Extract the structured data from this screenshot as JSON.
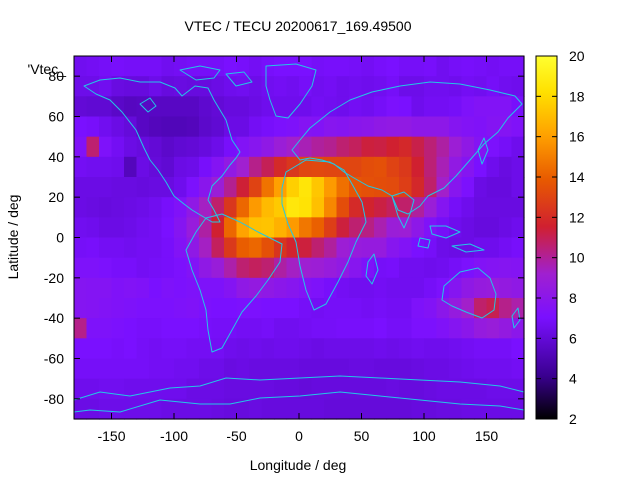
{
  "chart_data": {
    "type": "heatmap",
    "title": "VTEC / TECU 20200617_169.49500",
    "xlabel": "Longitude / deg",
    "ylabel": "Latitude / deg",
    "legend_label": "'Vtec_",
    "xlim": [
      -180,
      180
    ],
    "ylim": [
      -90,
      90
    ],
    "xticks": [
      -150,
      -100,
      -50,
      0,
      50,
      100,
      150
    ],
    "yticks": [
      -80,
      -60,
      -40,
      -20,
      0,
      20,
      40,
      60,
      80
    ],
    "colorbar": {
      "range": [
        2,
        20
      ],
      "ticks": [
        2,
        4,
        6,
        8,
        10,
        12,
        14,
        16,
        18,
        20
      ],
      "palette": [
        "#000000",
        "#3a0090",
        "#7a10ff",
        "#a020d0",
        "#d02030",
        "#e85a00",
        "#ffa000",
        "#ffe000",
        "#ffff30"
      ]
    },
    "grid": {
      "cols": 36,
      "rows": 18,
      "lon_step": 10,
      "lat_step": 10,
      "note": "rows run from latitude 90 (top) to -90 (bottom)",
      "values": [
        [
          6.6,
          6.7,
          6.8,
          6.9,
          6.8,
          6.8,
          6.8,
          6.6,
          6.7,
          6.8,
          6.8,
          6.8,
          7.0,
          6.9,
          6.7,
          6.9,
          7.0,
          7.0,
          7.0,
          6.8,
          6.9,
          6.9,
          6.8,
          6.7,
          6.9,
          7.0,
          6.8,
          6.8,
          6.9,
          6.6,
          6.8,
          6.9,
          6.8,
          6.7,
          6.8,
          6.8
        ],
        [
          6.4,
          6.4,
          6.6,
          6.2,
          6.1,
          6.1,
          6.4,
          6.1,
          6.2,
          6.1,
          6.1,
          6.3,
          6.5,
          6.6,
          6.4,
          6.6,
          6.7,
          6.6,
          6.8,
          6.6,
          6.7,
          6.5,
          6.6,
          6.5,
          6.6,
          6.8,
          6.4,
          6.4,
          6.6,
          6.6,
          6.5,
          6.7,
          6.6,
          6.8,
          6.6,
          6.5
        ],
        [
          5.9,
          5.8,
          5.8,
          5.5,
          5.3,
          5.4,
          5.4,
          5.4,
          5.4,
          5.4,
          5.7,
          5.9,
          6.1,
          6.1,
          6.3,
          6.5,
          6.5,
          6.5,
          6.5,
          6.7,
          6.6,
          6.5,
          6.7,
          6.6,
          6.8,
          7.1,
          7.0,
          6.5,
          6.7,
          6.7,
          6.8,
          7.2,
          7.4,
          7.4,
          7.4,
          6.9
        ],
        [
          7.0,
          6.9,
          6.6,
          6.3,
          6.0,
          5.4,
          5.2,
          5.1,
          5.1,
          5.2,
          5.6,
          5.8,
          6.3,
          6.3,
          6.7,
          6.9,
          7.1,
          7.2,
          7.5,
          7.4,
          7.7,
          7.6,
          7.8,
          7.9,
          8.1,
          8.2,
          8.2,
          8.0,
          8.0,
          8.0,
          7.6,
          7.4,
          7.3,
          7.5,
          7.5,
          7.3
        ],
        [
          7.3,
          10.5,
          7.2,
          6.7,
          6.3,
          6.1,
          5.9,
          5.6,
          5.8,
          5.9,
          6.1,
          6.4,
          6.9,
          7.4,
          7.7,
          8.1,
          8.7,
          9.1,
          9.4,
          9.8,
          10.0,
          10.5,
          10.8,
          11.3,
          11.2,
          11.5,
          11.8,
          11.1,
          10.4,
          9.7,
          8.8,
          8.1,
          7.5,
          7.1,
          6.8,
          6.5
        ],
        [
          6.7,
          6.6,
          6.6,
          6.5,
          5.2,
          6.3,
          6.0,
          5.8,
          6.3,
          6.4,
          6.9,
          7.5,
          8.2,
          9.0,
          10.1,
          10.9,
          11.9,
          12.4,
          13.0,
          13.1,
          13.0,
          13.0,
          13.0,
          13.3,
          13.4,
          12.9,
          12.5,
          11.5,
          10.4,
          9.4,
          8.2,
          7.6,
          7.0,
          6.5,
          6.2,
          6.4
        ],
        [
          6.3,
          6.3,
          6.3,
          6.2,
          6.2,
          6.1,
          6.2,
          6.2,
          6.5,
          7.1,
          7.8,
          8.7,
          10.0,
          11.4,
          12.9,
          14.6,
          16.0,
          17.6,
          18.5,
          17.3,
          15.8,
          14.5,
          13.6,
          13.4,
          13.3,
          13.2,
          12.7,
          11.8,
          10.6,
          9.1,
          7.7,
          7.1,
          6.3,
          6.1,
          6.1,
          6.4
        ],
        [
          6.3,
          6.2,
          6.1,
          6.2,
          6.3,
          6.4,
          6.6,
          6.9,
          7.3,
          8.1,
          9.2,
          10.6,
          12.4,
          14.2,
          15.8,
          16.9,
          17.4,
          18.6,
          18.4,
          17.1,
          15.2,
          13.3,
          11.9,
          11.6,
          11.2,
          10.8,
          10.6,
          9.8,
          8.7,
          7.6,
          6.8,
          6.5,
          6.2,
          6.2,
          6.2,
          6.2
        ],
        [
          6.6,
          6.5,
          6.3,
          6.3,
          6.4,
          6.6,
          6.7,
          7.0,
          7.6,
          8.5,
          9.7,
          11.5,
          14.2,
          16.1,
          17.1,
          17.2,
          16.6,
          15.8,
          14.7,
          14.0,
          12.7,
          11.3,
          10.5,
          10.2,
          9.5,
          8.7,
          8.8,
          8.0,
          7.3,
          6.8,
          6.5,
          6.3,
          6.1,
          6.1,
          6.3,
          6.5
        ],
        [
          6.8,
          6.9,
          6.7,
          6.7,
          6.6,
          6.7,
          6.7,
          6.9,
          7.4,
          8.1,
          9.2,
          10.8,
          12.5,
          13.9,
          14.2,
          13.4,
          12.3,
          11.6,
          11.3,
          10.5,
          9.8,
          8.8,
          8.5,
          8.4,
          8.4,
          7.7,
          7.4,
          7.0,
          6.8,
          6.4,
          6.3,
          6.3,
          6.5,
          6.5,
          6.7,
          6.9
        ],
        [
          7.2,
          7.2,
          7.1,
          6.9,
          6.9,
          6.7,
          6.8,
          6.9,
          7.1,
          7.4,
          8.1,
          8.6,
          9.6,
          10.5,
          10.8,
          10.5,
          9.7,
          9.2,
          8.9,
          8.8,
          8.5,
          8.2,
          7.7,
          7.2,
          6.8,
          6.9,
          6.6,
          6.6,
          6.5,
          6.6,
          6.8,
          7.1,
          7.4,
          7.5,
          7.6,
          7.5
        ],
        [
          7.6,
          7.5,
          7.5,
          7.3,
          7.4,
          7.3,
          7.0,
          7.2,
          7.1,
          7.2,
          7.2,
          7.2,
          7.5,
          8.1,
          8.3,
          8.1,
          7.9,
          7.7,
          7.4,
          7.2,
          6.9,
          6.7,
          6.6,
          6.6,
          6.7,
          6.6,
          6.6,
          6.6,
          6.8,
          7.1,
          7.6,
          8.1,
          8.4,
          8.5,
          8.3,
          8.1
        ],
        [
          7.6,
          7.5,
          7.4,
          7.3,
          7.2,
          7.1,
          7.1,
          7.1,
          7.2,
          7.3,
          7.1,
          7.0,
          7.0,
          7.1,
          7.1,
          7.0,
          7.0,
          7.0,
          6.8,
          6.7,
          6.8,
          6.8,
          6.8,
          6.7,
          6.8,
          6.7,
          6.7,
          7.2,
          7.4,
          7.9,
          8.4,
          9.1,
          10.6,
          11.0,
          10.1,
          9.6
        ],
        [
          10.1,
          7.2,
          7.2,
          7.1,
          7.0,
          6.9,
          6.9,
          7.0,
          7.0,
          7.0,
          6.9,
          6.8,
          6.8,
          6.7,
          6.7,
          6.8,
          6.6,
          6.6,
          6.7,
          6.8,
          6.8,
          6.9,
          6.9,
          6.9,
          7.0,
          6.8,
          6.8,
          7.1,
          7.1,
          7.3,
          7.6,
          7.9,
          8.4,
          8.6,
          8.3,
          7.9
        ],
        [
          7.0,
          7.0,
          7.0,
          6.9,
          7.0,
          6.8,
          6.7,
          6.8,
          6.8,
          6.7,
          6.7,
          6.7,
          6.5,
          6.4,
          6.5,
          6.4,
          6.5,
          6.5,
          6.4,
          6.3,
          6.4,
          6.4,
          6.4,
          6.4,
          6.5,
          6.4,
          6.5,
          6.6,
          6.5,
          6.5,
          6.6,
          6.7,
          6.8,
          6.8,
          6.8,
          7.0
        ],
        [
          6.8,
          6.8,
          6.8,
          6.8,
          6.8,
          6.8,
          6.7,
          6.7,
          6.6,
          6.6,
          6.4,
          6.4,
          6.2,
          6.3,
          6.2,
          6.2,
          6.2,
          6.2,
          6.1,
          6.1,
          6.1,
          6.1,
          6.2,
          6.2,
          6.1,
          6.1,
          6.1,
          6.2,
          6.3,
          6.3,
          6.4,
          6.5,
          6.6,
          6.6,
          6.6,
          6.7
        ],
        [
          6.5,
          6.5,
          6.6,
          6.6,
          6.5,
          6.5,
          6.5,
          6.5,
          6.5,
          6.3,
          6.3,
          6.3,
          6.2,
          6.2,
          6.2,
          6.2,
          6.1,
          6.1,
          6.0,
          6.1,
          6.1,
          6.1,
          6.1,
          6.1,
          6.1,
          6.2,
          6.1,
          6.1,
          6.2,
          6.3,
          6.3,
          6.3,
          6.3,
          6.4,
          6.4,
          6.4
        ],
        [
          6.3,
          6.3,
          6.4,
          6.4,
          6.4,
          6.4,
          6.4,
          6.3,
          6.3,
          6.3,
          6.3,
          6.2,
          6.1,
          6.1,
          6.2,
          6.1,
          6.1,
          6.1,
          6.1,
          6.1,
          6.0,
          6.0,
          6.0,
          6.0,
          6.0,
          6.0,
          6.0,
          6.1,
          6.1,
          6.2,
          6.2,
          6.3,
          6.3,
          6.3,
          6.3,
          6.3
        ]
      ]
    }
  }
}
